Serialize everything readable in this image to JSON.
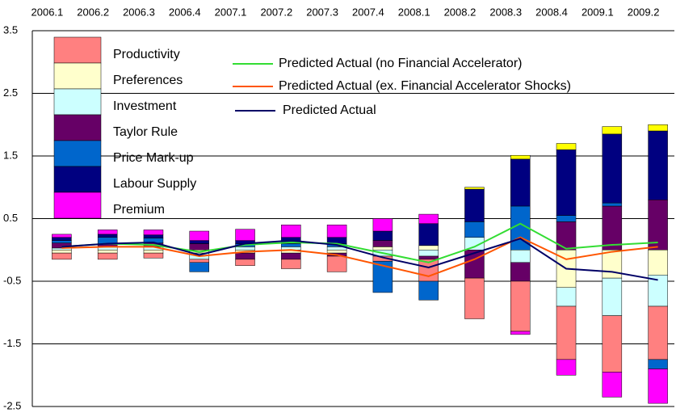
{
  "chart_data": {
    "type": "bar",
    "categories": [
      "2006.1",
      "2006.2",
      "2006.3",
      "2006.4",
      "2007.1",
      "2007.2",
      "2007.3",
      "2007.4",
      "2008.1",
      "2008.2",
      "2008.3",
      "2008.4",
      "2009.1",
      "2009.2"
    ],
    "ylim": [
      -2.5,
      3.5
    ],
    "yticks": [
      3.5,
      2.5,
      1.5,
      0.5,
      -0.5,
      -1.5,
      -2.5
    ],
    "grid": true,
    "series": [
      {
        "name": "Productivity",
        "color": "#ff8080",
        "values": [
          -0.1,
          -0.1,
          -0.08,
          -0.05,
          -0.1,
          -0.15,
          -0.25,
          -0.08,
          -0.35,
          -0.65,
          -0.8,
          -0.85,
          -0.9,
          -0.85
        ]
      },
      {
        "name": "Preferences",
        "color": "#ffffcc",
        "values": [
          -0.05,
          -0.05,
          -0.05,
          -0.05,
          -0.05,
          -0.05,
          -0.05,
          0.05,
          0.07,
          0,
          0,
          -0.6,
          -0.45,
          -0.4
        ]
      },
      {
        "name": "Investment",
        "color": "#ccffff",
        "values": [
          0.03,
          0.05,
          0.05,
          -0.1,
          0.05,
          0.05,
          0.05,
          -0.1,
          -0.1,
          0.2,
          -0.2,
          -0.3,
          -0.6,
          -0.5
        ]
      },
      {
        "name": "Taylor Rule",
        "color": "#660066",
        "values": [
          0.08,
          0.05,
          0.06,
          0.1,
          -0.1,
          -0.1,
          -0.05,
          0.1,
          -0.05,
          -0.45,
          -0.3,
          0.45,
          0.7,
          0.8
        ]
      },
      {
        "name": "Price Mark-up",
        "color": "#0066cc",
        "values": [
          0.04,
          0.1,
          0.08,
          -0.15,
          0.05,
          0.05,
          0.05,
          -0.5,
          -0.3,
          0.25,
          0.7,
          0.1,
          0.05,
          -0.15
        ]
      },
      {
        "name": "Labour Supply",
        "color": "#000080",
        "values": [
          0.05,
          0.05,
          0.05,
          0.05,
          0.05,
          0.1,
          0.1,
          0.15,
          0.35,
          0.52,
          0.75,
          1.05,
          1.1,
          1.1
        ]
      },
      {
        "name": "Premium",
        "color": "#ff00ff",
        "values": [
          0.05,
          0.07,
          0.08,
          0.15,
          0.18,
          0.2,
          0.2,
          0.2,
          0.15,
          0,
          -0.05,
          -0.25,
          -0.4,
          -0.55
        ]
      },
      {
        "color": "#ffff00",
        "values": [
          0,
          0,
          0,
          0,
          0,
          0,
          0,
          0,
          0,
          0.03,
          0.06,
          0.1,
          0.12,
          0.1
        ]
      }
    ],
    "lines": [
      {
        "name": "Predicted Actual (no Financial Accelerator)",
        "color": "#33dd33",
        "values": [
          0.05,
          0.1,
          0.08,
          -0.03,
          0.08,
          0.12,
          0.1,
          -0.05,
          -0.2,
          0.05,
          0.42,
          0.02,
          0.08,
          0.12
        ]
      },
      {
        "name": "Predicted Actual (ex. Financial Accelerator Shocks)",
        "color": "#ff5500",
        "values": [
          0.03,
          0.05,
          0.05,
          -0.1,
          -0.03,
          0,
          -0.08,
          -0.25,
          -0.42,
          -0.15,
          0.2,
          -0.15,
          -0.03,
          0.05
        ]
      },
      {
        "name": "Predicted Actual",
        "color": "#000066",
        "values": [
          0.05,
          0.1,
          0.12,
          -0.08,
          0.1,
          0.15,
          0.08,
          -0.12,
          -0.28,
          -0.05,
          0.18,
          -0.3,
          -0.35,
          -0.48
        ]
      }
    ]
  }
}
